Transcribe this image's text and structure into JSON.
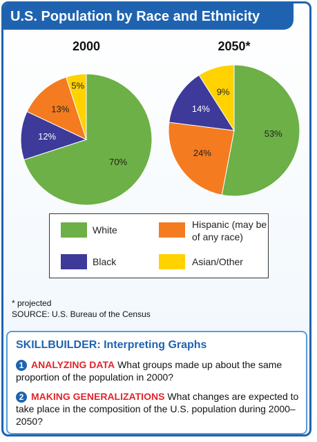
{
  "header": {
    "title": "U.S. Population by Race and Ethnicity"
  },
  "chart_data": [
    {
      "type": "pie",
      "title": "2000",
      "categories": [
        "White",
        "Black",
        "Hispanic (may be of any race)",
        "Asian/Other"
      ],
      "values": [
        70,
        12,
        13,
        5
      ],
      "value_labels": [
        "70%",
        "12%",
        "13%",
        "5%"
      ],
      "colors": [
        "#6cb047",
        "#3d3a9a",
        "#f47b20",
        "#ffd200"
      ]
    },
    {
      "type": "pie",
      "title": "2050*",
      "categories": [
        "White",
        "Hispanic (may be of any race)",
        "Black",
        "Asian/Other"
      ],
      "values": [
        53,
        24,
        14,
        9
      ],
      "value_labels": [
        "53%",
        "24%",
        "14%",
        "9%"
      ],
      "colors": [
        "#6cb047",
        "#f47b20",
        "#3d3a9a",
        "#ffd200"
      ]
    }
  ],
  "notes": {
    "footnote": "* projected",
    "source": "SOURCE: U.S. Bureau of the Census"
  },
  "skillbuilder": {
    "title": "SKILLBUILDER: Interpreting Graphs",
    "items": [
      {
        "number": "1",
        "heading": "ANALYZING DATA",
        "text": "What groups made up about the same proportion of the population in 2000?"
      },
      {
        "number": "2",
        "heading": "MAKING GENERALIZATIONS",
        "text": "What changes are expected to take place in the composition of the U.S. population during 2000–2050?"
      }
    ]
  }
}
